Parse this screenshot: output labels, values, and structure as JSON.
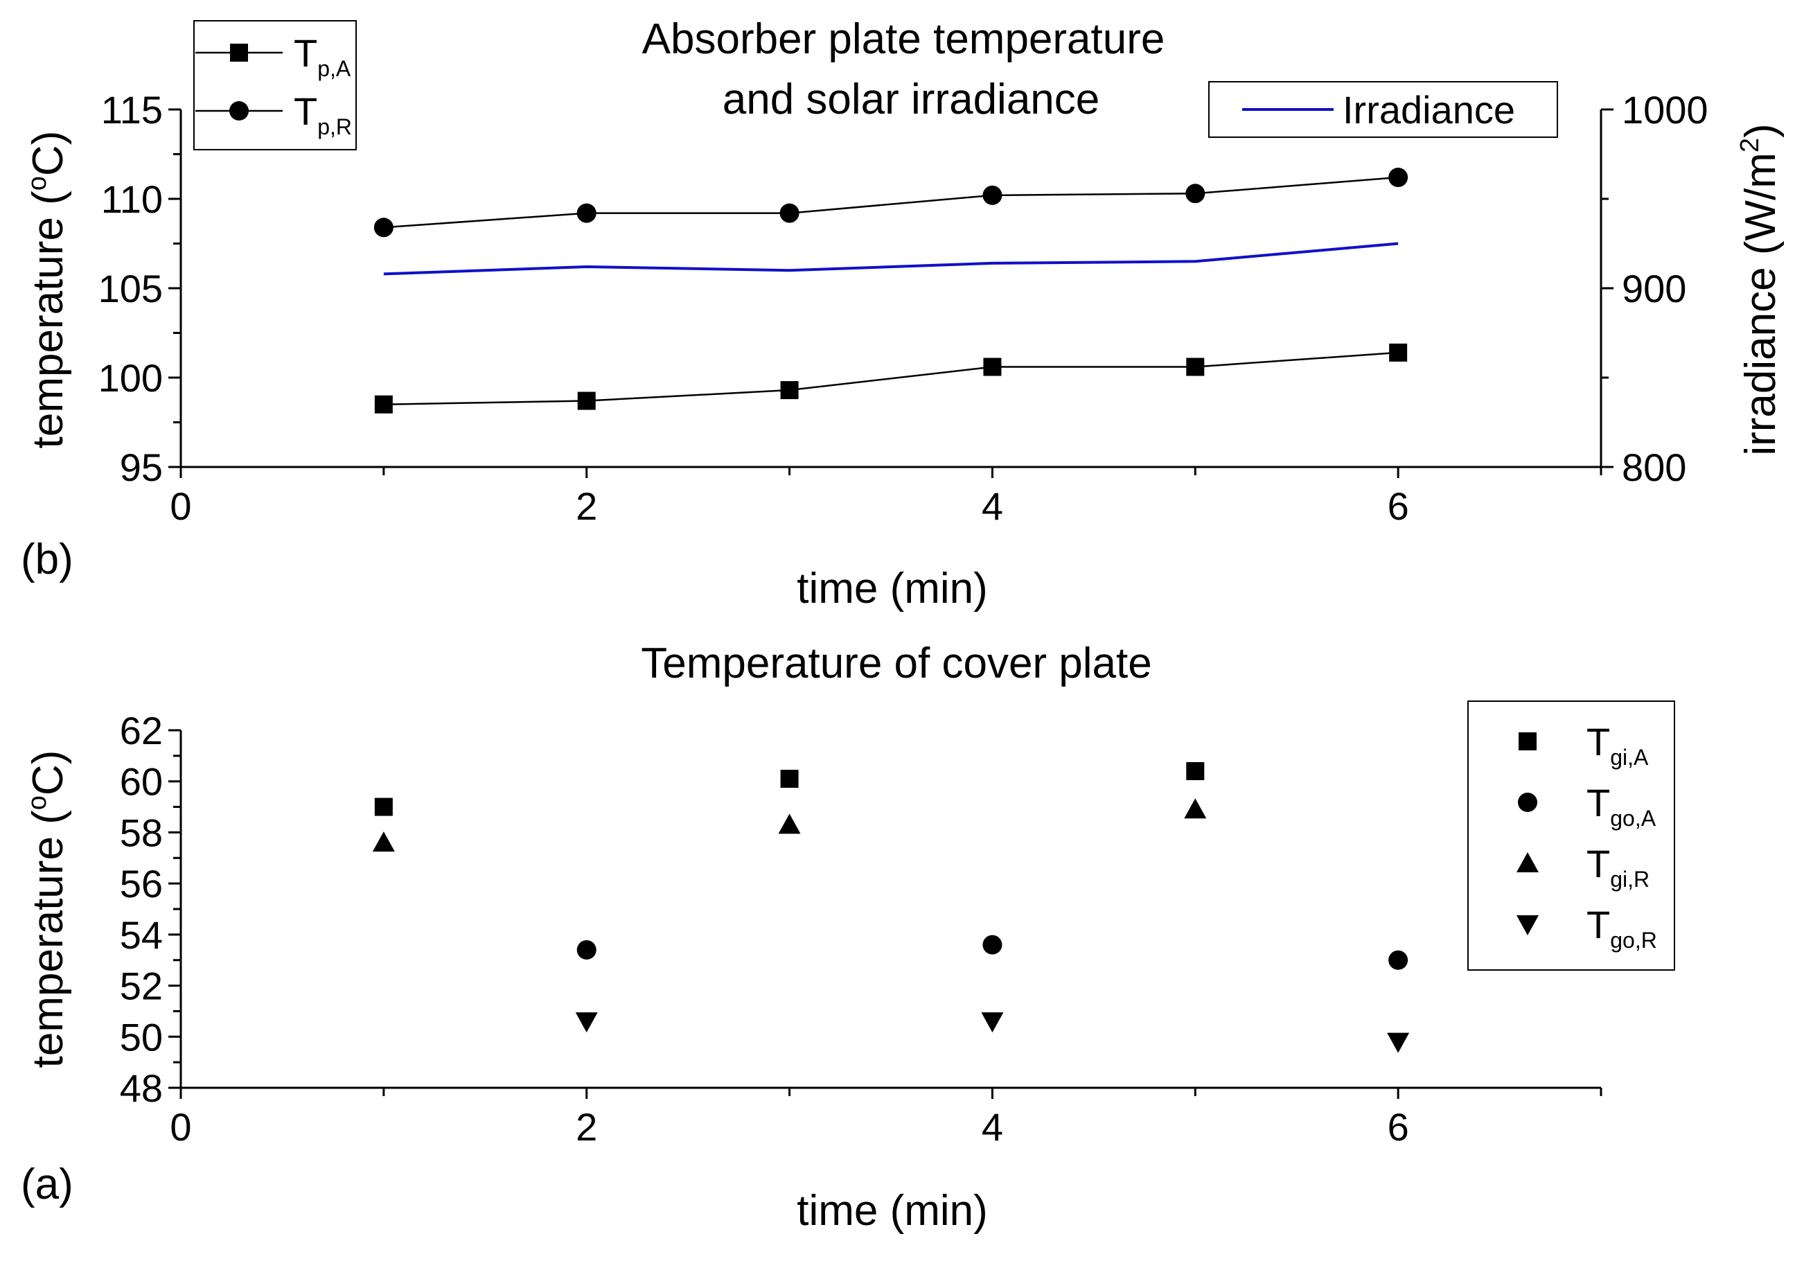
{
  "chart_data": [
    {
      "panel_label": "(b)",
      "type": "line",
      "title_lines": [
        "Absorber plate temperature",
        "and solar irradiance"
      ],
      "xlabel": "time (min)",
      "ylabel": "temperature (",
      "ylabel_sup": "o",
      "ylabel_end": "C)",
      "y2label": "irradiance (W/m",
      "y2label_sup": "2",
      "y2label_end": ")",
      "xlim": [
        0,
        7
      ],
      "ylim": [
        95,
        115
      ],
      "y2lim": [
        800,
        1000
      ],
      "x_ticks": [
        0,
        2,
        4,
        6
      ],
      "y_ticks": [
        95,
        100,
        105,
        110,
        115
      ],
      "y2_ticks": [
        800,
        900,
        1000
      ],
      "x": [
        1,
        2,
        3,
        4,
        5,
        6
      ],
      "series": [
        {
          "name": "T",
          "sub": "p,A",
          "marker": "square",
          "axis": "left",
          "color": "#000000",
          "values": [
            98.5,
            98.7,
            99.3,
            100.6,
            100.6,
            101.4
          ]
        },
        {
          "name": "T",
          "sub": "p,R",
          "marker": "circle",
          "axis": "left",
          "color": "#000000",
          "values": [
            108.4,
            109.2,
            109.2,
            110.2,
            110.3,
            111.2
          ]
        },
        {
          "name": "Irradiance",
          "marker": "none",
          "axis": "right",
          "color": "#1010c8",
          "values": [
            908,
            912,
            910,
            914,
            915,
            925
          ]
        }
      ]
    },
    {
      "panel_label": "(a)",
      "type": "scatter",
      "title": "Temperature of cover plate",
      "xlabel": "time (min)",
      "ylabel": "temperature (",
      "ylabel_sup": "o",
      "ylabel_end": "C)",
      "xlim": [
        0,
        7
      ],
      "ylim": [
        48,
        62
      ],
      "x_ticks": [
        0,
        2,
        4,
        6
      ],
      "y_ticks": [
        48,
        50,
        52,
        54,
        56,
        58,
        60,
        62
      ],
      "series": [
        {
          "name": "T",
          "sub": "gi,A",
          "marker": "square",
          "x": [
            1,
            3,
            5
          ],
          "values": [
            59.0,
            60.1,
            60.4
          ]
        },
        {
          "name": "T",
          "sub": "go,A",
          "marker": "circle",
          "x": [
            2,
            4,
            6
          ],
          "values": [
            53.4,
            53.6,
            53.0
          ]
        },
        {
          "name": "T",
          "sub": "gi,R",
          "marker": "triangle-up",
          "x": [
            1,
            3,
            5
          ],
          "values": [
            57.6,
            58.3,
            58.9
          ]
        },
        {
          "name": "T",
          "sub": "go,R",
          "marker": "triangle-down",
          "x": [
            2,
            4,
            6
          ],
          "values": [
            50.6,
            50.6,
            49.8
          ]
        }
      ]
    }
  ]
}
